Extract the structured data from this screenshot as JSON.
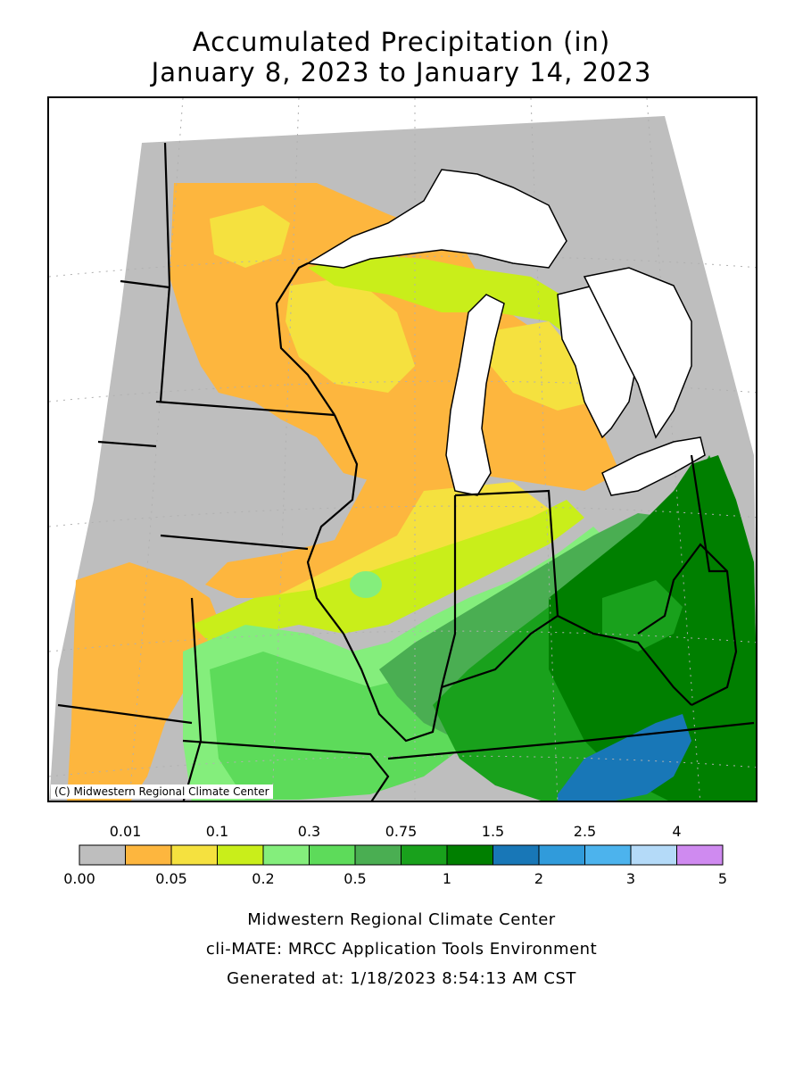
{
  "title": {
    "line1": "Accumulated Precipitation (in)",
    "line2": "January 8, 2023 to January 14, 2023"
  },
  "map": {
    "copyright": "(C) Midwestern Regional Climate Center",
    "colors": {
      "land_outline": "#000000",
      "lakes": "#ffffff",
      "grid": "#b0b0b0"
    }
  },
  "legend": {
    "upper_labels": [
      "0.01",
      "0.1",
      "0.3",
      "0.75",
      "1.5",
      "2.5",
      "4"
    ],
    "lower_labels": [
      "0.00",
      "0.05",
      "0.2",
      "0.5",
      "1",
      "2",
      "3",
      "5"
    ],
    "bins": [
      {
        "range": "0.00-0.01",
        "color": "#bebebe"
      },
      {
        "range": "0.01-0.05",
        "color": "#fdb63e"
      },
      {
        "range": "0.05-0.1",
        "color": "#f5e13f"
      },
      {
        "range": "0.1-0.2",
        "color": "#c9ee1a"
      },
      {
        "range": "0.2-0.3",
        "color": "#84ee7c"
      },
      {
        "range": "0.3-0.5",
        "color": "#5ddb5a"
      },
      {
        "range": "0.5-0.75",
        "color": "#4aae52"
      },
      {
        "range": "0.75-1",
        "color": "#19a11c"
      },
      {
        "range": "1-1.5",
        "color": "#007f00"
      },
      {
        "range": "1.5-2",
        "color": "#1877b7"
      },
      {
        "range": "2-2.5",
        "color": "#309bdb"
      },
      {
        "range": "2.5-3",
        "color": "#4cb3ed"
      },
      {
        "range": "3-4",
        "color": "#b4daf8"
      },
      {
        "range": "4-5",
        "color": "#cf8af0"
      }
    ]
  },
  "footer": {
    "line1": "Midwestern Regional Climate Center",
    "line2": "cli-MATE: MRCC Application Tools Environment",
    "line3": "Generated at: 1/18/2023 8:54:13 AM CST"
  }
}
